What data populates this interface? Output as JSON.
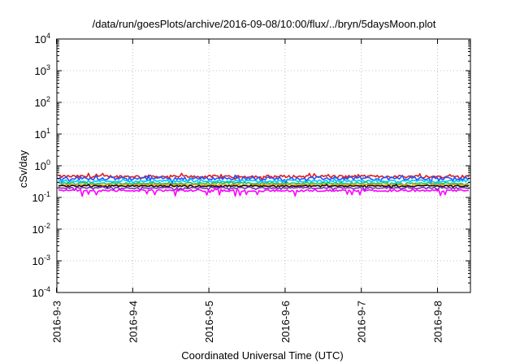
{
  "chart_data": {
    "type": "line",
    "title": "/data/run/goesPlots/archive/2016-09-08/10:00/flux/../bryn/5daysMoon.plot",
    "xlabel": "Coordinated Universal Time (UTC)",
    "ylabel": "cSv/day",
    "yscale": "log",
    "ylim": [
      0.0001,
      10000
    ],
    "xlim": [
      "2016-09-03",
      "2016-09-08 10:00"
    ],
    "grid": true,
    "legend": "none",
    "x_ticks": [
      {
        "label": "2016-9-3",
        "day": 0
      },
      {
        "label": "2016-9-4",
        "day": 1
      },
      {
        "label": "2016-9-5",
        "day": 2
      },
      {
        "label": "2016-9-6",
        "day": 3
      },
      {
        "label": "2016-9-7",
        "day": 4
      },
      {
        "label": "2016-9-8",
        "day": 5
      }
    ],
    "y_ticks": [
      {
        "base": "10",
        "exp": "4",
        "value": 10000
      },
      {
        "base": "10",
        "exp": "3",
        "value": 1000
      },
      {
        "base": "10",
        "exp": "2",
        "value": 100
      },
      {
        "base": "10",
        "exp": "1",
        "value": 10
      },
      {
        "base": "10",
        "exp": "0",
        "value": 1
      },
      {
        "base": "10",
        "exp": "-1",
        "value": 0.1
      },
      {
        "base": "10",
        "exp": "-2",
        "value": 0.01
      },
      {
        "base": "10",
        "exp": "-3",
        "value": 0.001
      },
      {
        "base": "10",
        "exp": "-4",
        "value": 0.0001
      }
    ],
    "series": [
      {
        "color": "#e41a1c",
        "level": 0.46,
        "jitter": 0.1,
        "dips": 0.18
      },
      {
        "color": "#1e56ff",
        "level": 0.4,
        "jitter": 0.12,
        "dips": 0.25
      },
      {
        "color": "#00c8ff",
        "level": 0.33,
        "jitter": 0.08,
        "dips": 0.15
      },
      {
        "color": "#20c060",
        "level": 0.28,
        "jitter": 0.06,
        "dips": 0.12
      },
      {
        "color": "#e0a000",
        "level": 0.25,
        "jitter": 0.05,
        "dips": 0.1
      },
      {
        "color": "#111111",
        "level": 0.23,
        "jitter": 0.05,
        "dips": 0.12
      },
      {
        "color": "#7b2cbf",
        "level": 0.2,
        "jitter": 0.05,
        "dips": 0.15
      },
      {
        "color": "#ff00ff",
        "level": 0.165,
        "jitter": 0.07,
        "dips": 0.35
      }
    ]
  }
}
